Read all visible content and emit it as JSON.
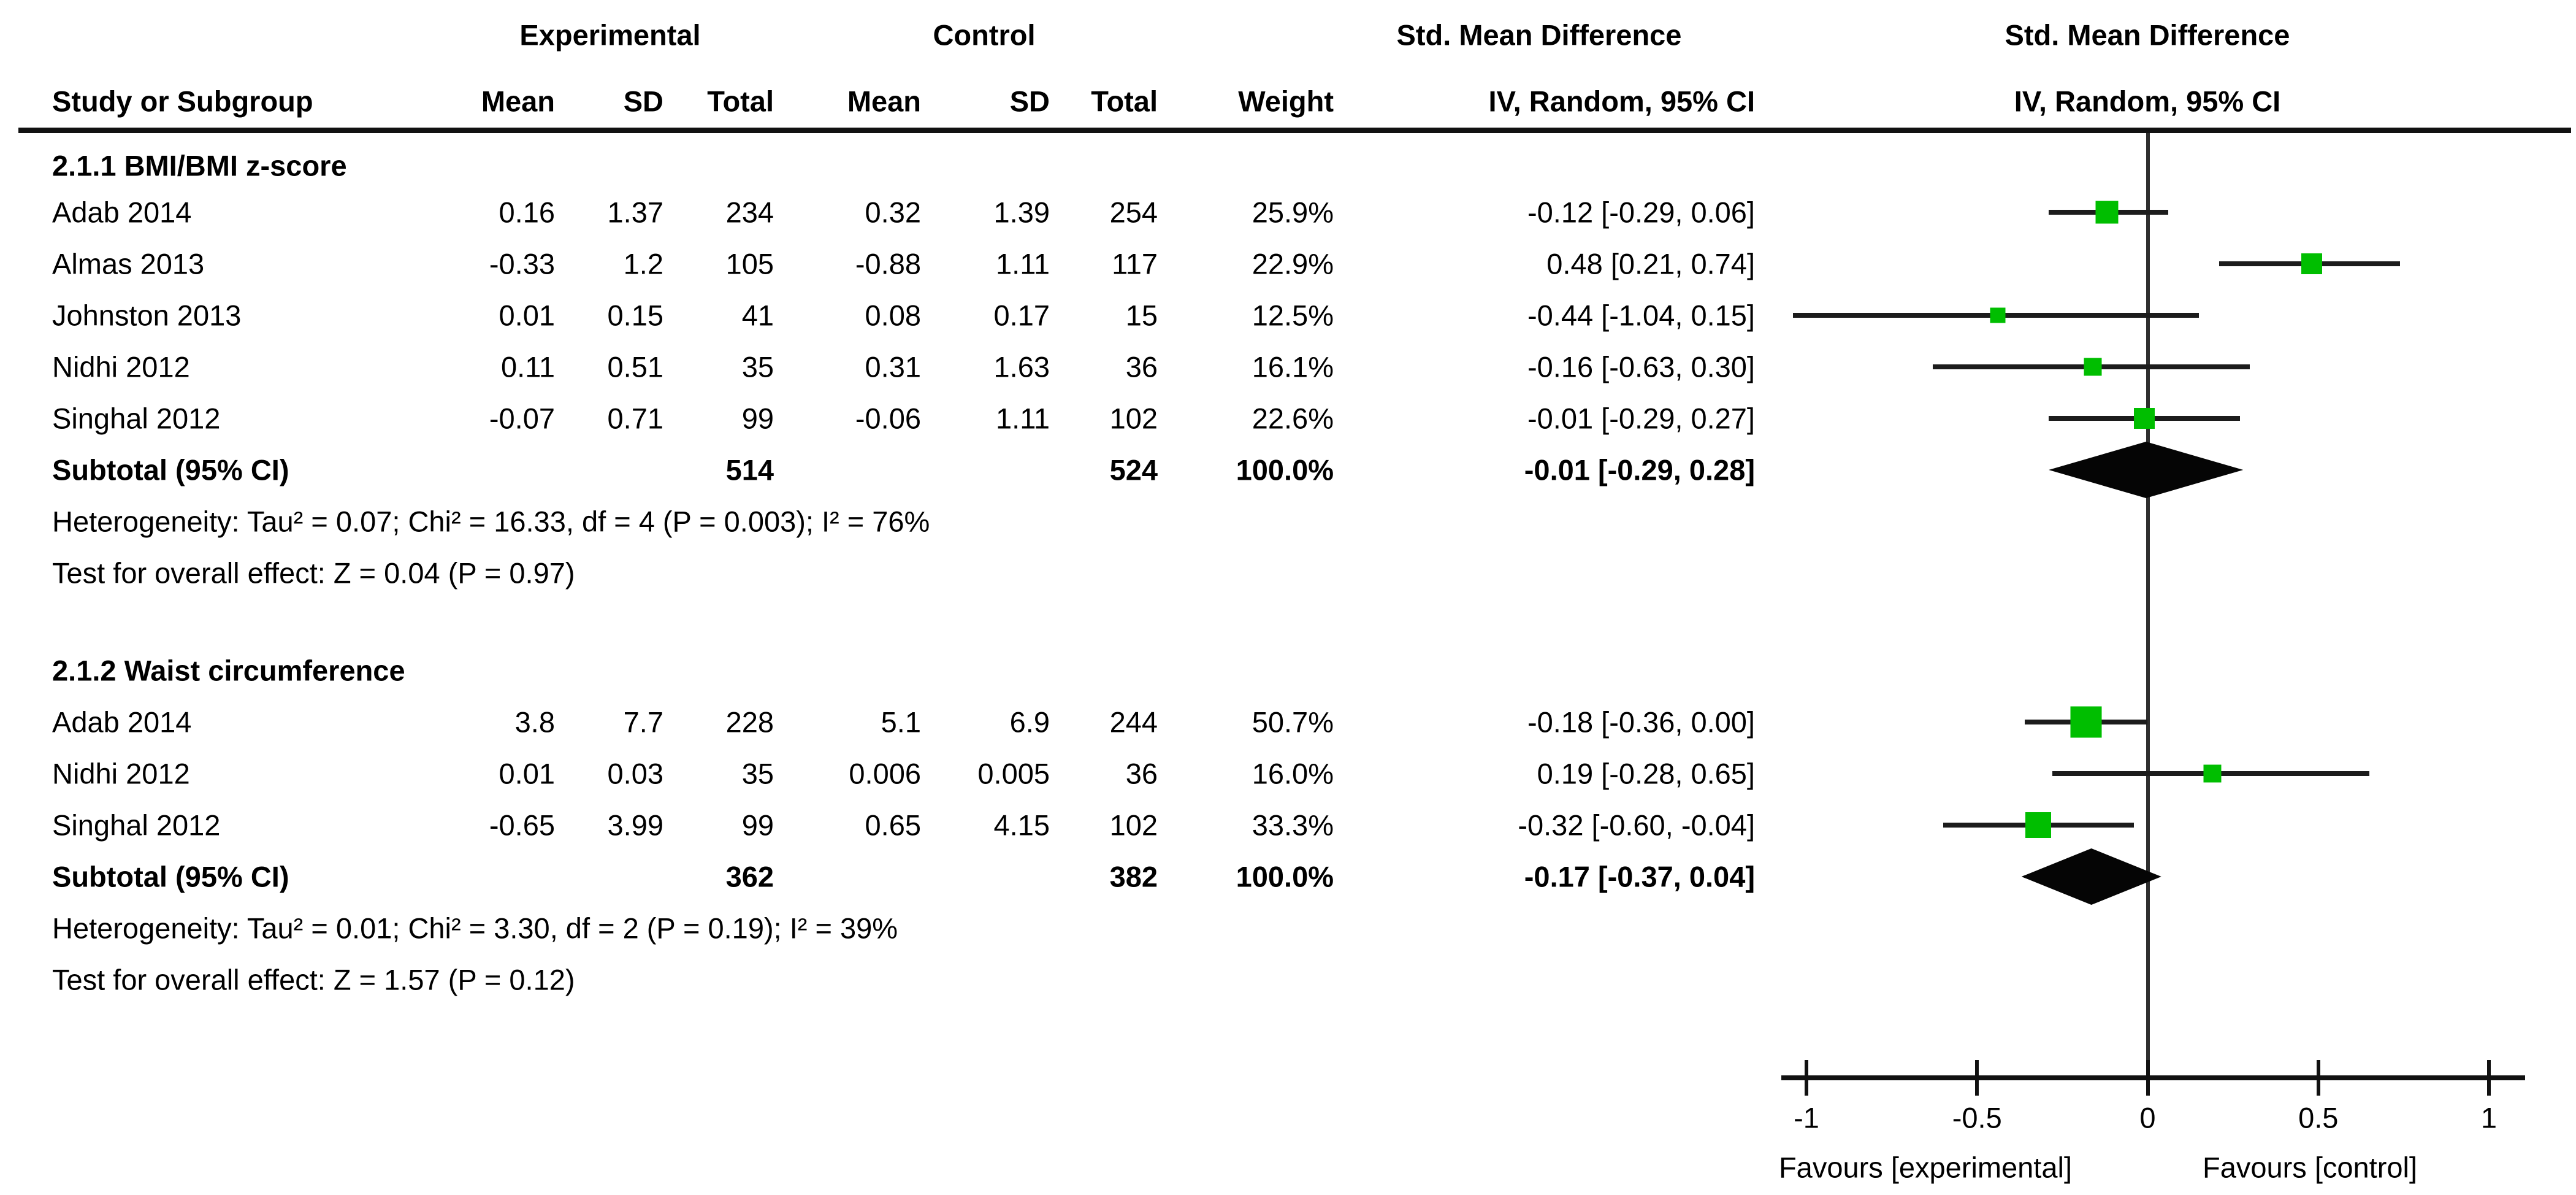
{
  "columns": {
    "study": "Study or Subgroup",
    "experimental": "Experimental",
    "control": "Control",
    "smd": "Std. Mean Difference",
    "mean": "Mean",
    "sd": "SD",
    "total": "Total",
    "weight": "Weight",
    "method": "IV, Random, 95% CI"
  },
  "colors": {
    "marker_green": "#00be00",
    "line_black": "#1c1c1c",
    "diamond_black": "#050505"
  },
  "chart_data": {
    "type": "forest",
    "effect_measure": "Std. Mean Difference",
    "model": "IV, Random, 95% CI",
    "axis": {
      "xlim": [
        -1.08,
        1.1
      ],
      "ticks": [
        {
          "label": "-1",
          "value": -1
        },
        {
          "label": "-0.5",
          "value": -0.5
        },
        {
          "label": "0",
          "value": 0
        },
        {
          "label": "0.5",
          "value": 0.5
        },
        {
          "label": "1",
          "value": 1
        }
      ],
      "favours_left": "Favours [experimental]",
      "favours_right": "Favours [control]"
    },
    "groups": [
      {
        "name": "2.1.1 BMI/BMI z-score",
        "studies": [
          {
            "study": "Adab 2014",
            "exp_mean": "0.16",
            "exp_sd": "1.37",
            "exp_total": "234",
            "ctl_mean": "0.32",
            "ctl_sd": "1.39",
            "ctl_total": "254",
            "weight": "25.9%",
            "weight_value": 25.9,
            "ci_text": "-0.12 [-0.29, 0.06]",
            "est": -0.12,
            "lo": -0.29,
            "hi": 0.06
          },
          {
            "study": "Almas 2013",
            "exp_mean": "-0.33",
            "exp_sd": "1.2",
            "exp_total": "105",
            "ctl_mean": "-0.88",
            "ctl_sd": "1.11",
            "ctl_total": "117",
            "weight": "22.9%",
            "weight_value": 22.9,
            "ci_text": "0.48 [0.21, 0.74]",
            "est": 0.48,
            "lo": 0.21,
            "hi": 0.74
          },
          {
            "study": "Johnston 2013",
            "exp_mean": "0.01",
            "exp_sd": "0.15",
            "exp_total": "41",
            "ctl_mean": "0.08",
            "ctl_sd": "0.17",
            "ctl_total": "15",
            "weight": "12.5%",
            "weight_value": 12.5,
            "ci_text": "-0.44 [-1.04, 0.15]",
            "est": -0.44,
            "lo": -1.04,
            "hi": 0.15
          },
          {
            "study": "Nidhi 2012",
            "exp_mean": "0.11",
            "exp_sd": "0.51",
            "exp_total": "35",
            "ctl_mean": "0.31",
            "ctl_sd": "1.63",
            "ctl_total": "36",
            "weight": "16.1%",
            "weight_value": 16.1,
            "ci_text": "-0.16 [-0.63, 0.30]",
            "est": -0.16,
            "lo": -0.63,
            "hi": 0.3
          },
          {
            "study": "Singhal 2012",
            "exp_mean": "-0.07",
            "exp_sd": "0.71",
            "exp_total": "99",
            "ctl_mean": "-0.06",
            "ctl_sd": "1.11",
            "ctl_total": "102",
            "weight": "22.6%",
            "weight_value": 22.6,
            "ci_text": "-0.01 [-0.29, 0.27]",
            "est": -0.01,
            "lo": -0.29,
            "hi": 0.27
          }
        ],
        "subtotal": {
          "label": "Subtotal (95% CI)",
          "exp_total": "514",
          "ctl_total": "524",
          "weight": "100.0%",
          "ci_text": "-0.01 [-0.29, 0.28]",
          "est": -0.01,
          "lo": -0.29,
          "hi": 0.28
        },
        "heterogeneity": "Heterogeneity: Tau² = 0.07; Chi² = 16.33, df = 4 (P = 0.003); I² = 76%",
        "overall_effect": "Test for overall effect: Z = 0.04 (P = 0.97)"
      },
      {
        "name": "2.1.2 Waist circumference",
        "studies": [
          {
            "study": "Adab 2014",
            "exp_mean": "3.8",
            "exp_sd": "7.7",
            "exp_total": "228",
            "ctl_mean": "5.1",
            "ctl_sd": "6.9",
            "ctl_total": "244",
            "weight": "50.7%",
            "weight_value": 50.7,
            "ci_text": "-0.18 [-0.36, 0.00]",
            "est": -0.18,
            "lo": -0.36,
            "hi": 0.0
          },
          {
            "study": "Nidhi 2012",
            "exp_mean": "0.01",
            "exp_sd": "0.03",
            "exp_total": "35",
            "ctl_mean": "0.006",
            "ctl_sd": "0.005",
            "ctl_total": "36",
            "weight": "16.0%",
            "weight_value": 16.0,
            "ci_text": "0.19 [-0.28, 0.65]",
            "est": 0.19,
            "lo": -0.28,
            "hi": 0.65
          },
          {
            "study": "Singhal 2012",
            "exp_mean": "-0.65",
            "exp_sd": "3.99",
            "exp_total": "99",
            "ctl_mean": "0.65",
            "ctl_sd": "4.15",
            "ctl_total": "102",
            "weight": "33.3%",
            "weight_value": 33.3,
            "ci_text": "-0.32 [-0.60, -0.04]",
            "est": -0.32,
            "lo": -0.6,
            "hi": -0.04
          }
        ],
        "subtotal": {
          "label": "Subtotal (95% CI)",
          "exp_total": "362",
          "ctl_total": "382",
          "weight": "100.0%",
          "ci_text": "-0.17 [-0.37, 0.04]",
          "est": -0.17,
          "lo": -0.37,
          "hi": 0.04
        },
        "heterogeneity": "Heterogeneity: Tau² = 0.01; Chi² = 3.30, df = 2 (P = 0.19); I² = 39%",
        "overall_effect": "Test for overall effect: Z = 1.57 (P = 0.12)"
      }
    ]
  }
}
